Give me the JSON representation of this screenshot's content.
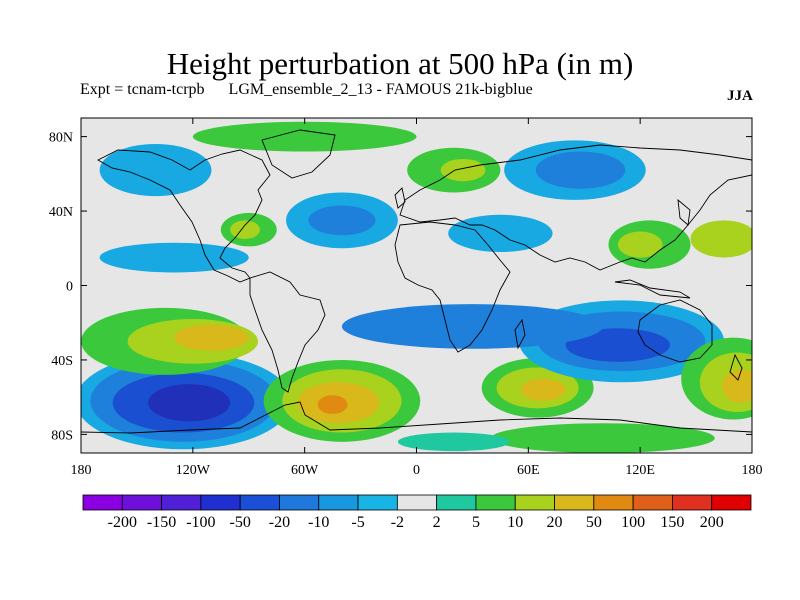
{
  "title": "Height perturbation at 500 hPa (in m)",
  "subtitle": {
    "expt": "Expt = tcnam-tcrpb",
    "run": "LGM_ensemble_2_13 - FAMOUS 21k-bigblue",
    "season": "JJA"
  },
  "map": {
    "lat_range": [
      -90,
      90
    ],
    "lon_range": [
      -180,
      180
    ],
    "lat_ticks": [
      {
        "value": 80,
        "label": "80N"
      },
      {
        "value": 40,
        "label": "40N"
      },
      {
        "value": 0,
        "label": "0"
      },
      {
        "value": -40,
        "label": "40S"
      },
      {
        "value": -80,
        "label": "80S"
      }
    ],
    "lon_ticks": [
      {
        "value": -180,
        "label": "180"
      },
      {
        "value": -120,
        "label": "120W"
      },
      {
        "value": -60,
        "label": "60W"
      },
      {
        "value": 0,
        "label": "0"
      },
      {
        "value": 60,
        "label": "60E"
      },
      {
        "value": 120,
        "label": "120E"
      },
      {
        "value": 180,
        "label": "180"
      }
    ],
    "background_color": "#e6e6e6",
    "regions": [
      {
        "name": "south-pacific-low-outer",
        "lon": -125,
        "lat": -62,
        "rlon": 58,
        "rlat": 26,
        "color": "#18a8e2"
      },
      {
        "name": "south-pacific-low-mid",
        "lon": -125,
        "lat": -62,
        "rlon": 50,
        "rlat": 22,
        "color": "#1f80db"
      },
      {
        "name": "south-pacific-low-inner",
        "lon": -125,
        "lat": -63,
        "rlon": 38,
        "rlat": 16,
        "color": "#1a4fd1"
      },
      {
        "name": "south-pacific-low-core",
        "lon": -122,
        "lat": -63,
        "rlon": 22,
        "rlat": 10,
        "color": "#2030b8"
      },
      {
        "name": "pacific-green-band",
        "lon": -135,
        "lat": -30,
        "rlon": 45,
        "rlat": 18,
        "color": "#3cc83c"
      },
      {
        "name": "pacific-yellow-band",
        "lon": -120,
        "lat": -30,
        "rlon": 35,
        "rlat": 12,
        "color": "#a8d21e"
      },
      {
        "name": "pacific-gold-band",
        "lon": -110,
        "lat": -28,
        "rlon": 20,
        "rlat": 7,
        "color": "#d8b81a"
      },
      {
        "name": "south-atlantic-high-outer",
        "lon": -40,
        "lat": -62,
        "rlon": 42,
        "rlat": 22,
        "color": "#3cc83c"
      },
      {
        "name": "south-atlantic-high-mid",
        "lon": -40,
        "lat": -62,
        "rlon": 32,
        "rlat": 17,
        "color": "#a8d21e"
      },
      {
        "name": "south-atlantic-high-inner",
        "lon": -42,
        "lat": -63,
        "rlon": 22,
        "rlat": 11,
        "color": "#d8b81a"
      },
      {
        "name": "south-atlantic-high-core",
        "lon": -45,
        "lat": -64,
        "rlon": 8,
        "rlat": 5,
        "color": "#e08a12"
      },
      {
        "name": "indian-ocean-high-outer",
        "lon": 65,
        "lat": -55,
        "rlon": 30,
        "rlat": 16,
        "color": "#3cc83c"
      },
      {
        "name": "indian-ocean-high-mid",
        "lon": 65,
        "lat": -55,
        "rlon": 22,
        "rlat": 11,
        "color": "#a8d21e"
      },
      {
        "name": "indian-ocean-high-core",
        "lon": 68,
        "lat": -56,
        "rlon": 12,
        "rlat": 6,
        "color": "#d8b81a"
      },
      {
        "name": "australia-low-outer",
        "lon": 110,
        "lat": -30,
        "rlon": 55,
        "rlat": 22,
        "color": "#18a8e2"
      },
      {
        "name": "australia-low-mid",
        "lon": 110,
        "lat": -30,
        "rlon": 45,
        "rlat": 16,
        "color": "#1f80db"
      },
      {
        "name": "australia-low-core",
        "lon": 108,
        "lat": -32,
        "rlon": 28,
        "rlat": 9,
        "color": "#1a4fd1"
      },
      {
        "name": "south-pacific-high-outer",
        "lon": 170,
        "lat": -50,
        "rlon": 28,
        "rlat": 22,
        "color": "#3cc83c"
      },
      {
        "name": "south-pacific-high-mid",
        "lon": 172,
        "lat": -52,
        "rlon": 20,
        "rlat": 16,
        "color": "#a8d21e"
      },
      {
        "name": "south-pacific-high-core",
        "lon": 174,
        "lat": -54,
        "rlon": 10,
        "rlat": 9,
        "color": "#d8b81a"
      },
      {
        "name": "antarctic-green",
        "lon": 100,
        "lat": -82,
        "rlon": 60,
        "rlat": 8,
        "color": "#3cc83c"
      },
      {
        "name": "antarctic-teal",
        "lon": 20,
        "lat": -84,
        "rlon": 30,
        "rlat": 5,
        "color": "#20c8a0"
      },
      {
        "name": "equatorial-blue-band",
        "lon": 30,
        "lat": -22,
        "rlon": 70,
        "rlat": 12,
        "color": "#1f80db"
      },
      {
        "name": "north-atlantic-blue",
        "lon": -40,
        "lat": 35,
        "rlon": 30,
        "rlat": 15,
        "color": "#18a8e2"
      },
      {
        "name": "north-atlantic-blue-core",
        "lon": -40,
        "lat": 35,
        "rlon": 18,
        "rlat": 8,
        "color": "#1f80db"
      },
      {
        "name": "north-pacific-blue",
        "lon": -140,
        "lat": 62,
        "rlon": 30,
        "rlat": 14,
        "color": "#18a8e2"
      },
      {
        "name": "siberia-blue",
        "lon": 85,
        "lat": 62,
        "rlon": 38,
        "rlat": 16,
        "color": "#18a8e2"
      },
      {
        "name": "siberia-blue-core",
        "lon": 88,
        "lat": 62,
        "rlon": 24,
        "rlat": 10,
        "color": "#1f80db"
      },
      {
        "name": "arctic-green",
        "lon": -60,
        "lat": 80,
        "rlon": 60,
        "rlat": 8,
        "color": "#3cc83c"
      },
      {
        "name": "europe-green",
        "lon": 20,
        "lat": 62,
        "rlon": 25,
        "rlat": 12,
        "color": "#3cc83c"
      },
      {
        "name": "europe-yellow",
        "lon": 25,
        "lat": 62,
        "rlon": 12,
        "rlat": 6,
        "color": "#a8d21e"
      },
      {
        "name": "north-america-green",
        "lon": -90,
        "lat": 30,
        "rlon": 15,
        "rlat": 9,
        "color": "#3cc83c"
      },
      {
        "name": "north-america-yellow",
        "lon": -92,
        "lat": 30,
        "rlon": 8,
        "rlat": 5,
        "color": "#a8d21e"
      },
      {
        "name": "east-asia-green",
        "lon": 125,
        "lat": 22,
        "rlon": 22,
        "rlat": 13,
        "color": "#3cc83c"
      },
      {
        "name": "east-asia-yellow",
        "lon": 120,
        "lat": 22,
        "rlon": 12,
        "rlat": 7,
        "color": "#a8d21e"
      },
      {
        "name": "west-pacific-green",
        "lon": 165,
        "lat": 25,
        "rlon": 18,
        "rlat": 10,
        "color": "#a8d21e"
      },
      {
        "name": "arabia-blue",
        "lon": 45,
        "lat": 28,
        "rlon": 28,
        "rlat": 10,
        "color": "#18a8e2"
      },
      {
        "name": "central-pacific-blue",
        "lon": -130,
        "lat": 15,
        "rlon": 40,
        "rlat": 8,
        "color": "#18a8e2"
      }
    ],
    "colorbar": {
      "colors": [
        "#8a00e0",
        "#6e10dc",
        "#5020d8",
        "#2030d0",
        "#1a50d8",
        "#1f78dc",
        "#1898e0",
        "#18b4e4",
        "#e6e6e6",
        "#20c8a0",
        "#3cc83c",
        "#a8d21e",
        "#d8b81a",
        "#e08a12",
        "#e0601a",
        "#e03020",
        "#e00000"
      ],
      "labels": [
        "-200",
        "-150",
        "-100",
        "-50",
        "-20",
        "-10",
        "-5",
        "-2",
        "2",
        "5",
        "10",
        "20",
        "50",
        "100",
        "150",
        "200"
      ]
    }
  }
}
